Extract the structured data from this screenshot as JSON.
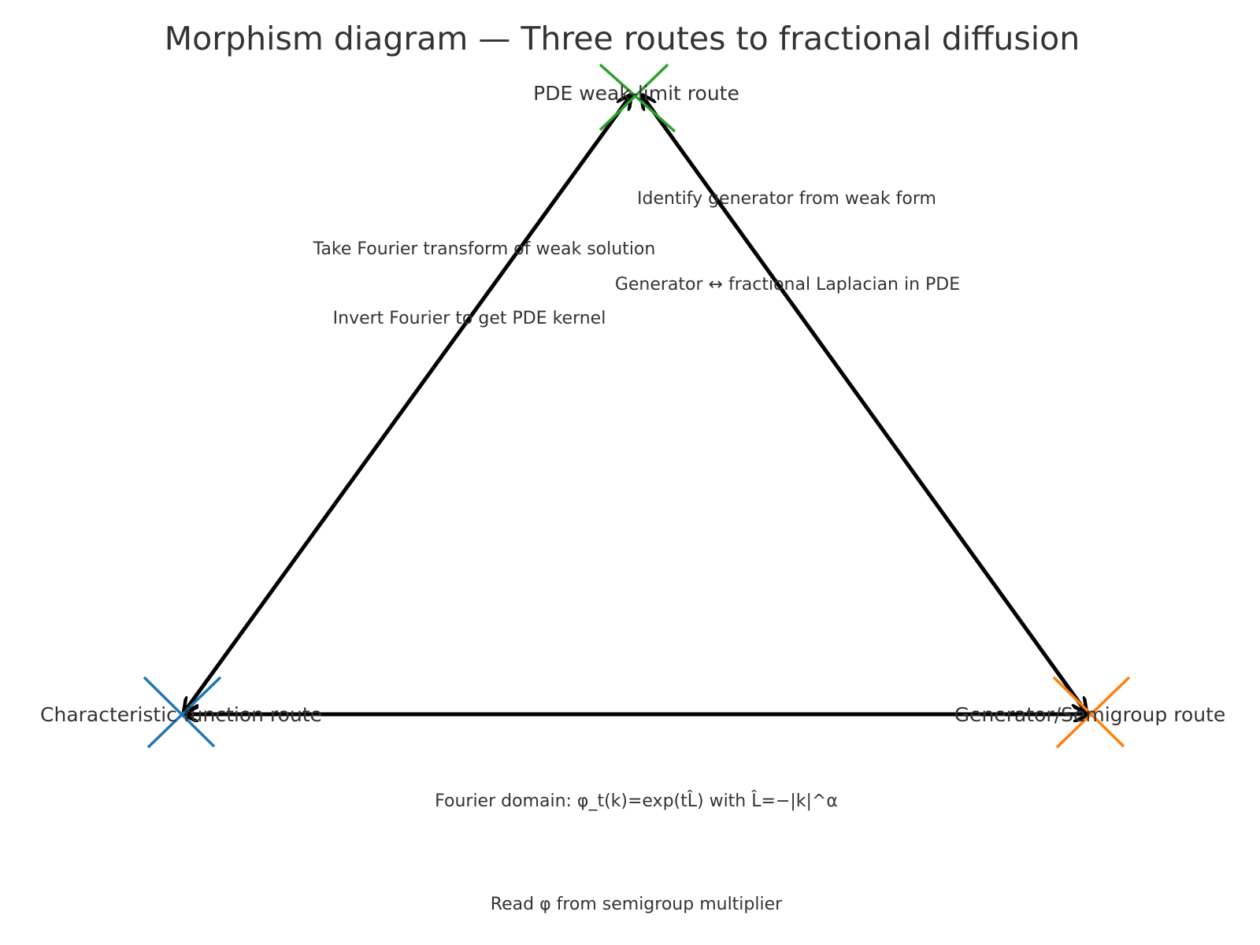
{
  "title": "Morphism diagram — Three routes to fractional diffusion",
  "colors": {
    "characteristic": "#1f77b4",
    "generator": "#ff7f0e",
    "pde": "#2ca02c",
    "edge": "#000000",
    "text": "#333333"
  },
  "nodes": {
    "pde": {
      "label": "PDE weak-limit route",
      "marker": "x-marker"
    },
    "characteristic": {
      "label": "Characteristic function route",
      "marker": "x-marker"
    },
    "generator": {
      "label": "Generator/Semigroup route",
      "marker": "x-marker"
    }
  },
  "edges": {
    "pde_to_char": {
      "from": "pde",
      "to": "characteristic",
      "label": "Take Fourier transform of weak solution"
    },
    "char_to_pde": {
      "from": "characteristic",
      "to": "pde",
      "label": "Invert Fourier to get PDE kernel"
    },
    "pde_to_gen": {
      "from": "pde",
      "to": "generator",
      "label": "Identify generator from weak form"
    },
    "gen_to_pde": {
      "from": "generator",
      "to": "pde",
      "label": "Generator ↔ fractional Laplacian in PDE"
    },
    "char_to_gen": {
      "from": "characteristic",
      "to": "generator",
      "label": "Fourier domain: φ_t(k)=exp(tL̂) with L̂=−|k|^α"
    },
    "gen_to_char": {
      "from": "generator",
      "to": "characteristic",
      "label": "Read φ from semigroup multiplier"
    }
  }
}
